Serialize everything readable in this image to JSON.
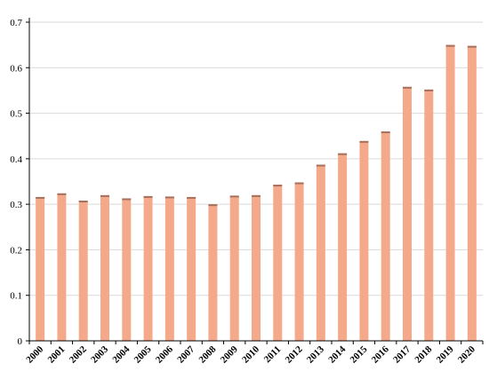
{
  "chart_data": {
    "type": "bar",
    "title": "",
    "xlabel": "",
    "ylabel": "",
    "categories": [
      "2000",
      "2001",
      "2002",
      "2003",
      "2004",
      "2005",
      "2006",
      "2007",
      "2008",
      "2009",
      "2010",
      "2011",
      "2012",
      "2013",
      "2014",
      "2015",
      "2016",
      "2017",
      "2018",
      "2019",
      "2020"
    ],
    "values": [
      0.316,
      0.324,
      0.308,
      0.32,
      0.313,
      0.318,
      0.317,
      0.316,
      0.3,
      0.319,
      0.32,
      0.343,
      0.348,
      0.387,
      0.412,
      0.439,
      0.46,
      0.558,
      0.552,
      0.65,
      0.648
    ],
    "ylim": [
      0,
      0.7
    ],
    "yticks": [
      "0",
      "0.1",
      "0.2",
      "0.3",
      "0.4",
      "0.5",
      "0.6",
      "0.7"
    ],
    "ytick_values": [
      0,
      0.1,
      0.2,
      0.3,
      0.4,
      0.5,
      0.6,
      0.7
    ],
    "grid": true,
    "legend": "none",
    "colors": {
      "bar": "#f4a98a",
      "bar_top": "#a6705e",
      "grid": "#d9d9d9",
      "axis": "#000000"
    }
  }
}
